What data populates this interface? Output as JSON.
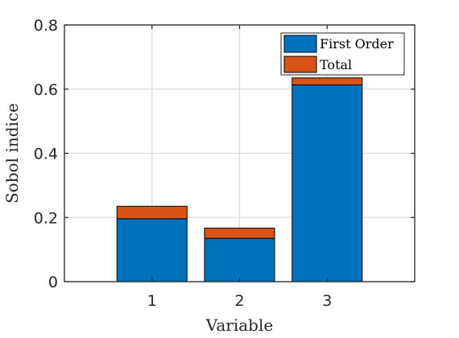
{
  "chart_data": {
    "type": "bar",
    "stacked": true,
    "categories": [
      "1",
      "2",
      "3"
    ],
    "series": [
      {
        "name": "First Order",
        "values": [
          0.196,
          0.135,
          0.613
        ],
        "color": "#0072BD"
      },
      {
        "name": "Total",
        "values": [
          0.039,
          0.032,
          0.022
        ],
        "color": "#D95319"
      }
    ],
    "xlabel": "Variable",
    "ylabel": "Sobol indice",
    "xlim": [
      0,
      4
    ],
    "ylim": [
      0,
      0.8
    ],
    "yticks": [
      "0",
      "0.2",
      "0.4",
      "0.6",
      "0.8"
    ],
    "grid": true,
    "legend_position": "top-right"
  }
}
